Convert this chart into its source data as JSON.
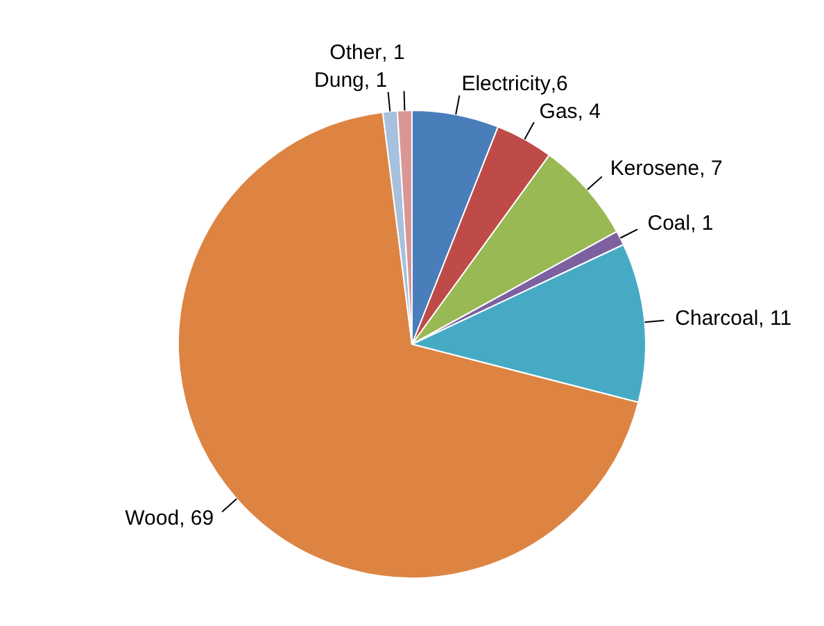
{
  "chart_data": {
    "type": "pie",
    "categories": [
      "Electricity",
      "Gas",
      "Kerosene",
      "Coal",
      "Charcoal",
      "Wood",
      "Dung",
      "Other"
    ],
    "values": [
      6,
      4,
      7,
      1,
      11,
      69,
      1,
      1
    ],
    "colors": [
      "#4a7ebb",
      "#be4b48",
      "#98b954",
      "#7d60a0",
      "#46aac5",
      "#dd8443",
      "#a7c0de",
      "#d99694"
    ],
    "value_labels": [
      ",6",
      ", 4",
      ", 7",
      ", 1",
      ", 11",
      ", 69",
      ", 1",
      ", 1"
    ],
    "legend": false
  }
}
